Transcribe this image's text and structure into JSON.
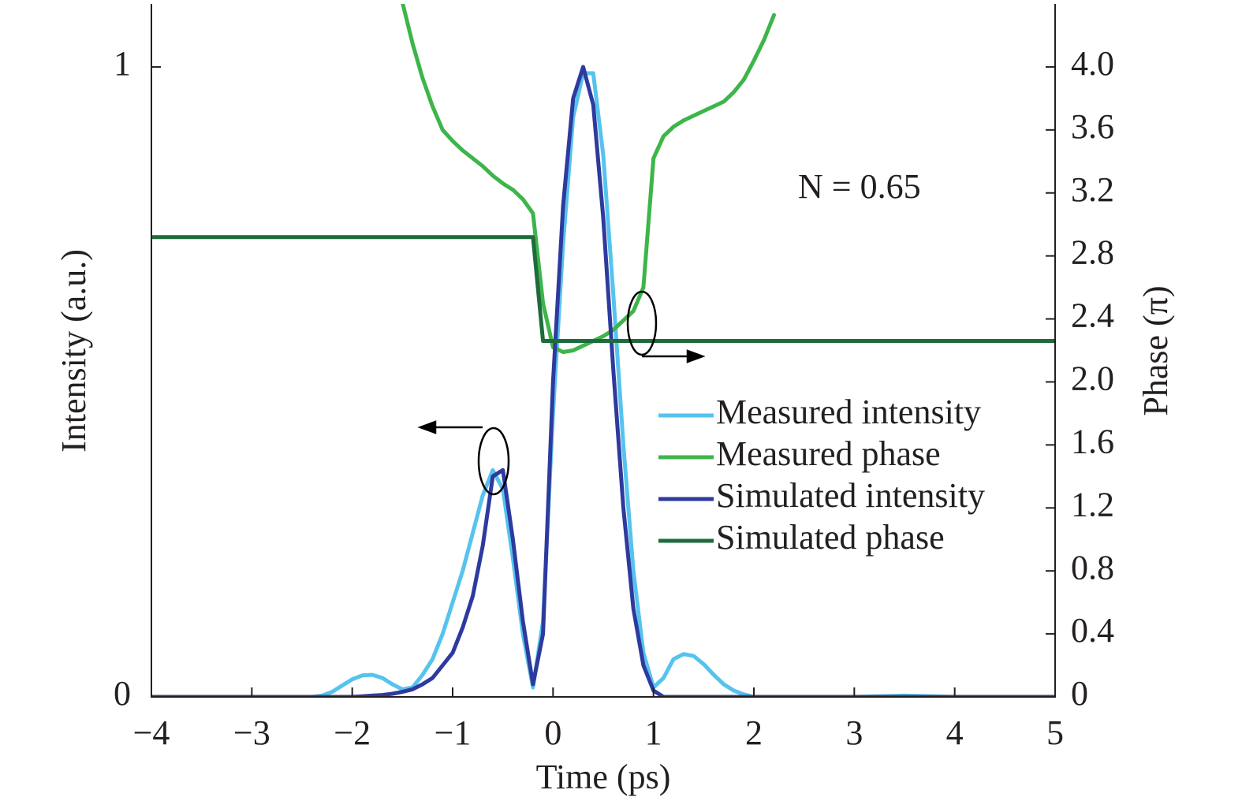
{
  "chart_data": {
    "type": "line",
    "xlabel": "Time (ps)",
    "ylabel": "Intensity (a.u.)",
    "y2label": "Phase (π)",
    "annotations": [
      "N = 0.65"
    ],
    "legend": "center right",
    "x": [
      -4,
      -3.5,
      -3,
      -2.5,
      -2.4,
      -2.3,
      -2.2,
      -2.1,
      -2.0,
      -1.9,
      -1.8,
      -1.7,
      -1.6,
      -1.5,
      -1.4,
      -1.3,
      -1.2,
      -1.1,
      -1.0,
      -0.9,
      -0.8,
      -0.7,
      -0.6,
      -0.5,
      -0.4,
      -0.3,
      -0.2,
      -0.1,
      0,
      0.1,
      0.2,
      0.3,
      0.4,
      0.5,
      0.6,
      0.7,
      0.8,
      0.9,
      1.0,
      1.1,
      1.2,
      1.3,
      1.4,
      1.5,
      1.6,
      1.7,
      1.8,
      1.9,
      2.0,
      2.1,
      2.2,
      2.3,
      2.4,
      2.5,
      3,
      3.5,
      4,
      4.5,
      5
    ],
    "series": [
      {
        "name": "Measured intensity",
        "color": "#56c3ee",
        "values": [
          0,
          0,
          0,
          0,
          0,
          0.002,
          0.008,
          0.018,
          0.028,
          0.034,
          0.035,
          0.03,
          0.02,
          0.012,
          0.015,
          0.035,
          0.06,
          0.1,
          0.15,
          0.2,
          0.26,
          0.32,
          0.36,
          0.33,
          0.22,
          0.1,
          0.015,
          0.12,
          0.45,
          0.72,
          0.92,
          0.99,
          0.99,
          0.86,
          0.64,
          0.4,
          0.2,
          0.07,
          0.015,
          0.03,
          0.06,
          0.068,
          0.065,
          0.052,
          0.035,
          0.02,
          0.01,
          0.004,
          0,
          0,
          0,
          0,
          0,
          0,
          0,
          0.002,
          0,
          0,
          0
        ]
      },
      {
        "name": "Measured phase",
        "color": "#3db54a",
        "axis": "y2",
        "values": [
          null,
          null,
          null,
          null,
          null,
          null,
          null,
          null,
          null,
          null,
          null,
          null,
          null,
          4.41,
          4.15,
          3.93,
          3.75,
          3.6,
          3.53,
          3.47,
          3.42,
          3.37,
          3.31,
          3.26,
          3.22,
          3.16,
          3.07,
          2.5,
          2.22,
          2.19,
          2.2,
          2.23,
          2.26,
          2.29,
          2.33,
          2.39,
          2.45,
          2.6,
          3.42,
          3.56,
          3.62,
          3.66,
          3.69,
          3.72,
          3.75,
          3.78,
          3.84,
          3.92,
          4.04,
          4.17,
          4.33,
          null,
          null,
          null,
          null,
          null,
          null,
          null,
          null
        ]
      },
      {
        "name": "Simulated intensity",
        "color": "#2e3a9e",
        "values": [
          0,
          0,
          0,
          0,
          0,
          0,
          0,
          0,
          0,
          0.001,
          0.002,
          0.003,
          0.005,
          0.008,
          0.012,
          0.02,
          0.03,
          0.05,
          0.07,
          0.11,
          0.16,
          0.24,
          0.35,
          0.36,
          0.25,
          0.12,
          0.02,
          0.1,
          0.5,
          0.78,
          0.95,
          1.0,
          0.94,
          0.76,
          0.52,
          0.3,
          0.14,
          0.05,
          0.01,
          0,
          0,
          0,
          0,
          0,
          0,
          0,
          0,
          0,
          0,
          0,
          0,
          0,
          0,
          0,
          0,
          0,
          0,
          0,
          0
        ]
      },
      {
        "name": "Simulated phase",
        "color": "#1e6b3c",
        "axis": "y2",
        "values": [
          2.92,
          2.92,
          2.92,
          2.92,
          2.92,
          2.92,
          2.92,
          2.92,
          2.92,
          2.92,
          2.92,
          2.92,
          2.92,
          2.92,
          2.92,
          2.92,
          2.92,
          2.92,
          2.92,
          2.92,
          2.92,
          2.92,
          2.92,
          2.92,
          2.92,
          2.92,
          2.92,
          2.26,
          2.26,
          2.26,
          2.26,
          2.26,
          2.26,
          2.26,
          2.26,
          2.26,
          2.26,
          2.26,
          2.26,
          2.26,
          2.26,
          2.26,
          2.26,
          2.26,
          2.26,
          2.26,
          2.26,
          2.26,
          2.26,
          2.26,
          2.26,
          2.26,
          2.26,
          2.26,
          2.26,
          2.26,
          2.26,
          2.26,
          2.26
        ]
      }
    ],
    "xlim": [
      -4,
      5
    ],
    "xticks": [
      {
        "value": -4,
        "label": "−4"
      },
      {
        "value": -3,
        "label": "−3"
      },
      {
        "value": -2,
        "label": "−2"
      },
      {
        "value": -1,
        "label": "−1"
      },
      0,
      1,
      2,
      3,
      4,
      5
    ],
    "ylim": [
      0,
      1.1
    ],
    "yticks": [
      0,
      1
    ],
    "y2lim": [
      0,
      4.4
    ],
    "y2ticks": [
      0,
      0.4,
      0.8,
      1.2,
      1.6,
      {
        "value": 2,
        "label": "2.0"
      },
      2.4,
      2.8,
      3.2,
      3.6,
      {
        "value": 4,
        "label": "4.0"
      }
    ]
  }
}
